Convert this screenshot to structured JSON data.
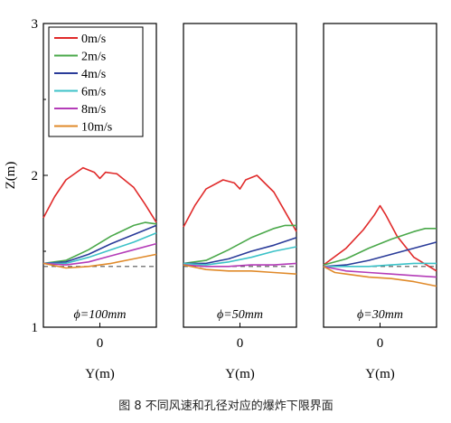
{
  "figure_caption": "图 8   不同风速和孔径对应的爆炸下限界面",
  "chart_data": {
    "type": "line",
    "ylabel": "Z(m)",
    "xlabel": "Y(m)",
    "ylim": [
      1,
      3
    ],
    "yticks": [
      "1",
      "2",
      "3"
    ],
    "xlim": [
      -1,
      1
    ],
    "legend_placement": "top-left of first panel",
    "reference_line": {
      "y": 1.4,
      "style": "dashed",
      "color": "#555555"
    },
    "series": [
      {
        "name": "0m/s",
        "color": "#e02a2a"
      },
      {
        "name": "2m/s",
        "color": "#4aa84a"
      },
      {
        "name": "4m/s",
        "color": "#2a3b99"
      },
      {
        "name": "6m/s",
        "color": "#3cc2c8"
      },
      {
        "name": "8m/s",
        "color": "#b43cb8"
      },
      {
        "name": "10m/s",
        "color": "#e08a2a"
      }
    ],
    "panels": [
      {
        "label": "ϕ=100mm",
        "xtick": "0",
        "xlabel": "Y(m)",
        "lines": [
          {
            "x": [
              -1,
              -0.8,
              -0.6,
              -0.3,
              -0.1,
              0,
              0.1,
              0.3,
              0.6,
              0.8,
              1
            ],
            "y": [
              1.72,
              1.86,
              1.97,
              2.05,
              2.02,
              1.98,
              2.02,
              2.01,
              1.92,
              1.81,
              1.69
            ]
          },
          {
            "x": [
              -1,
              -0.6,
              -0.2,
              0.2,
              0.6,
              0.8,
              1
            ],
            "y": [
              1.42,
              1.44,
              1.51,
              1.6,
              1.67,
              1.69,
              1.68
            ]
          },
          {
            "x": [
              -1,
              -0.6,
              -0.2,
              0.2,
              0.6,
              1
            ],
            "y": [
              1.42,
              1.43,
              1.48,
              1.55,
              1.61,
              1.67
            ]
          },
          {
            "x": [
              -1,
              -0.6,
              -0.2,
              0.2,
              0.6,
              1
            ],
            "y": [
              1.42,
              1.42,
              1.46,
              1.51,
              1.56,
              1.62
            ]
          },
          {
            "x": [
              -1,
              -0.6,
              -0.2,
              0.2,
              0.6,
              1
            ],
            "y": [
              1.42,
              1.41,
              1.43,
              1.47,
              1.51,
              1.55
            ]
          },
          {
            "x": [
              -1,
              -0.6,
              -0.2,
              0.2,
              0.6,
              1
            ],
            "y": [
              1.42,
              1.39,
              1.4,
              1.42,
              1.45,
              1.48
            ]
          }
        ]
      },
      {
        "label": "ϕ=50mm",
        "xtick": "0",
        "xlabel": "Y(m)",
        "lines": [
          {
            "x": [
              -1,
              -0.8,
              -0.6,
              -0.3,
              -0.1,
              0,
              0.1,
              0.3,
              0.6,
              0.8,
              1
            ],
            "y": [
              1.66,
              1.8,
              1.91,
              1.97,
              1.95,
              1.91,
              1.97,
              2.0,
              1.89,
              1.76,
              1.63
            ]
          },
          {
            "x": [
              -1,
              -0.6,
              -0.2,
              0.2,
              0.6,
              0.8,
              1
            ],
            "y": [
              1.42,
              1.44,
              1.51,
              1.59,
              1.65,
              1.67,
              1.67
            ]
          },
          {
            "x": [
              -1,
              -0.6,
              -0.2,
              0.2,
              0.6,
              1
            ],
            "y": [
              1.42,
              1.42,
              1.45,
              1.5,
              1.54,
              1.59
            ]
          },
          {
            "x": [
              -1,
              -0.6,
              -0.2,
              0.2,
              0.6,
              1
            ],
            "y": [
              1.42,
              1.41,
              1.43,
              1.46,
              1.5,
              1.53
            ]
          },
          {
            "x": [
              -1,
              -0.6,
              -0.2,
              0.2,
              0.6,
              1
            ],
            "y": [
              1.41,
              1.4,
              1.4,
              1.41,
              1.41,
              1.42
            ]
          },
          {
            "x": [
              -1,
              -0.6,
              -0.2,
              0.2,
              0.6,
              1
            ],
            "y": [
              1.41,
              1.38,
              1.37,
              1.37,
              1.36,
              1.35
            ]
          }
        ]
      },
      {
        "label": "ϕ=30mm",
        "xtick": "0",
        "xlabel": "Y(m)",
        "lines": [
          {
            "x": [
              -1,
              -0.6,
              -0.3,
              -0.1,
              0,
              0.1,
              0.3,
              0.6,
              1
            ],
            "y": [
              1.41,
              1.52,
              1.64,
              1.74,
              1.8,
              1.74,
              1.6,
              1.46,
              1.37
            ]
          },
          {
            "x": [
              -1,
              -0.6,
              -0.2,
              0.2,
              0.6,
              0.8,
              1
            ],
            "y": [
              1.41,
              1.45,
              1.52,
              1.58,
              1.63,
              1.65,
              1.65
            ]
          },
          {
            "x": [
              -1,
              -0.6,
              -0.2,
              0.2,
              0.6,
              1
            ],
            "y": [
              1.4,
              1.41,
              1.44,
              1.48,
              1.52,
              1.56
            ]
          },
          {
            "x": [
              -1,
              -0.6,
              -0.2,
              0.2,
              0.6,
              1
            ],
            "y": [
              1.4,
              1.4,
              1.4,
              1.41,
              1.42,
              1.42
            ]
          },
          {
            "x": [
              -1,
              -0.6,
              -0.2,
              0.2,
              0.6,
              1
            ],
            "y": [
              1.4,
              1.37,
              1.36,
              1.35,
              1.34,
              1.33
            ]
          },
          {
            "x": [
              -1,
              -0.8,
              -0.6,
              -0.2,
              0.2,
              0.6,
              1
            ],
            "y": [
              1.4,
              1.36,
              1.35,
              1.33,
              1.32,
              1.3,
              1.27
            ]
          }
        ]
      }
    ]
  }
}
